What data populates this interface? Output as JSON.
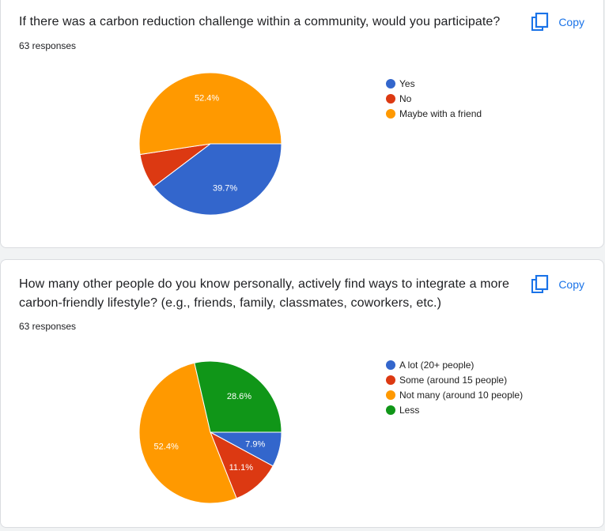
{
  "colors": {
    "blue": "#3366cc",
    "red": "#dc3912",
    "orange": "#ff9900",
    "green": "#109618",
    "link": "#1a73e8"
  },
  "cards": [
    {
      "question": "If there was a carbon reduction challenge within a community, would you participate?",
      "responses": "63 responses",
      "copy_label": "Copy",
      "copy_icon": "copy-icon"
    },
    {
      "question": "How many other people do you know personally, actively find ways to integrate a more carbon-friendly lifestyle? (e.g., friends, family, classmates, coworkers, etc.)",
      "responses": "63 responses",
      "copy_label": "Copy",
      "copy_icon": "copy-icon"
    }
  ],
  "chart_data": [
    {
      "type": "pie",
      "title": "",
      "start_angle_deg": 90,
      "slices": [
        {
          "label": "Yes",
          "value": 39.7,
          "color": "#3366cc",
          "data_label": "39.7%"
        },
        {
          "label": "No",
          "value": 7.9,
          "color": "#dc3912",
          "data_label": ""
        },
        {
          "label": "Maybe with a friend",
          "value": 52.4,
          "color": "#ff9900",
          "data_label": "52.4%"
        }
      ],
      "legend_position": "right"
    },
    {
      "type": "pie",
      "title": "",
      "start_angle_deg": 90,
      "slices": [
        {
          "label": "A lot (20+ people)",
          "value": 7.9,
          "color": "#3366cc",
          "data_label": "7.9%"
        },
        {
          "label": "Some (around 15 people)",
          "value": 11.1,
          "color": "#dc3912",
          "data_label": "11.1%"
        },
        {
          "label": "Not many (around 10 people)",
          "value": 52.4,
          "color": "#ff9900",
          "data_label": "52.4%"
        },
        {
          "label": "Less",
          "value": 28.6,
          "color": "#109618",
          "data_label": "28.6%"
        }
      ],
      "legend_position": "right"
    }
  ]
}
